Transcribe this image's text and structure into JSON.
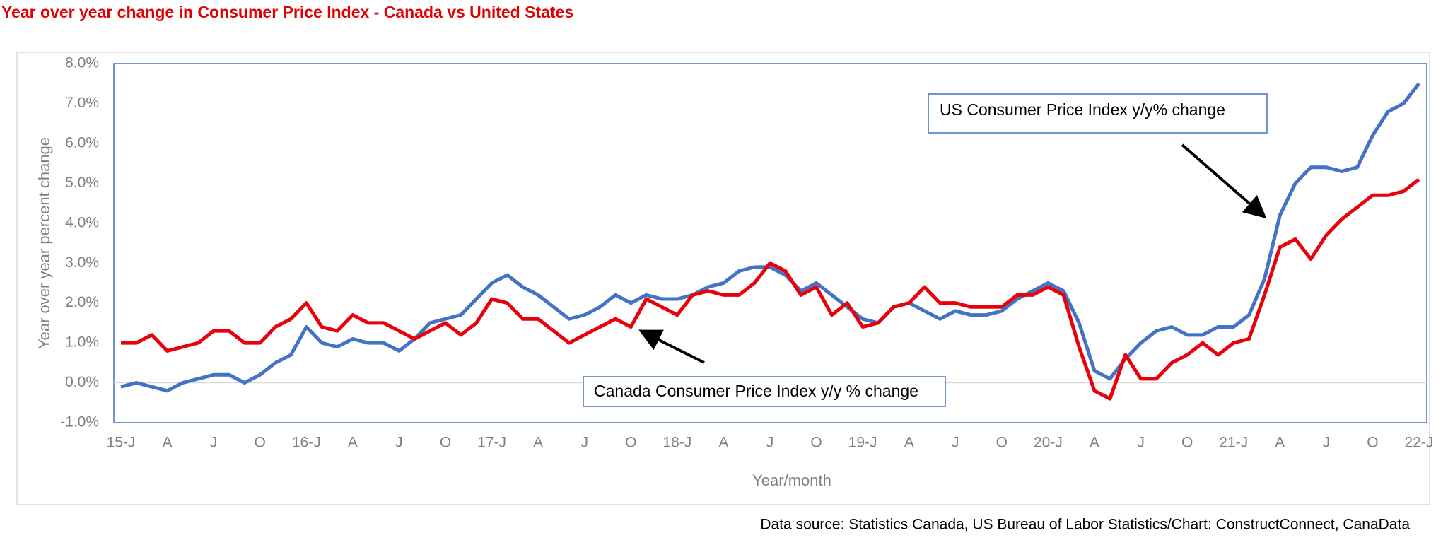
{
  "chart_data": {
    "type": "line",
    "title": "Year over year change in Consumer Price Index - Canada vs United States",
    "x_label": "Year/month",
    "y_label": "Year over year percent change",
    "source": "Data source: Statistics Canada, US Bureau of Labor Statistics/Chart: ConstructConnect, CanaData",
    "categories": [
      "15-J",
      null,
      null,
      "A",
      null,
      null,
      "J",
      null,
      null,
      "O",
      null,
      null,
      "16-J",
      null,
      null,
      "A",
      null,
      null,
      "J",
      null,
      null,
      "O",
      null,
      null,
      "17-J",
      null,
      null,
      "A",
      null,
      null,
      "J",
      null,
      null,
      "O",
      null,
      null,
      "18-J",
      null,
      null,
      "A",
      null,
      null,
      "J",
      null,
      null,
      "O",
      null,
      null,
      "19-J",
      null,
      null,
      "A",
      null,
      null,
      "J",
      null,
      null,
      "O",
      null,
      null,
      "20-J",
      null,
      null,
      "A",
      null,
      null,
      "J",
      null,
      null,
      "O",
      null,
      null,
      "21-J",
      null,
      null,
      "A",
      null,
      null,
      "J",
      null,
      null,
      "O",
      null,
      null,
      "22-J"
    ],
    "series": [
      {
        "name": "US Consumer Price Index y/y% change",
        "color": "#4472c4",
        "values": [
          -0.1,
          0.0,
          -0.1,
          -0.2,
          0.0,
          0.1,
          0.2,
          0.2,
          0.0,
          0.2,
          0.5,
          0.7,
          1.4,
          1.0,
          0.9,
          1.1,
          1.0,
          1.0,
          0.8,
          1.1,
          1.5,
          1.6,
          1.7,
          2.1,
          2.5,
          2.7,
          2.4,
          2.2,
          1.9,
          1.6,
          1.7,
          1.9,
          2.2,
          2.0,
          2.2,
          2.1,
          2.1,
          2.2,
          2.4,
          2.5,
          2.8,
          2.9,
          2.9,
          2.7,
          2.3,
          2.5,
          2.2,
          1.9,
          1.6,
          1.5,
          1.9,
          2.0,
          1.8,
          1.6,
          1.8,
          1.7,
          1.7,
          1.8,
          2.1,
          2.3,
          2.5,
          2.3,
          1.5,
          0.3,
          0.1,
          0.6,
          1.0,
          1.3,
          1.4,
          1.2,
          1.2,
          1.4,
          1.4,
          1.7,
          2.6,
          4.2,
          5.0,
          5.4,
          5.4,
          5.3,
          5.4,
          6.2,
          6.8,
          7.0,
          7.5
        ]
      },
      {
        "name": "Canada Consumer Price Index y/y % change",
        "color": "#e8000b",
        "values": [
          1.0,
          1.0,
          1.2,
          0.8,
          0.9,
          1.0,
          1.3,
          1.3,
          1.0,
          1.0,
          1.4,
          1.6,
          2.0,
          1.4,
          1.3,
          1.7,
          1.5,
          1.5,
          1.3,
          1.1,
          1.3,
          1.5,
          1.2,
          1.5,
          2.1,
          2.0,
          1.6,
          1.6,
          1.3,
          1.0,
          1.2,
          1.4,
          1.6,
          1.4,
          2.1,
          1.9,
          1.7,
          2.2,
          2.3,
          2.2,
          2.2,
          2.5,
          3.0,
          2.8,
          2.2,
          2.4,
          1.7,
          2.0,
          1.4,
          1.5,
          1.9,
          2.0,
          2.4,
          2.0,
          2.0,
          1.9,
          1.9,
          1.9,
          2.2,
          2.2,
          2.4,
          2.2,
          0.9,
          -0.2,
          -0.4,
          0.7,
          0.1,
          0.1,
          0.5,
          0.7,
          1.0,
          0.7,
          1.0,
          1.1,
          2.2,
          3.4,
          3.6,
          3.1,
          3.7,
          4.1,
          4.4,
          4.7,
          4.7,
          4.8,
          5.1
        ]
      }
    ],
    "ylim": [
      -1,
      8
    ],
    "yticks": [
      {
        "value": -1,
        "label": "-1.0%"
      },
      {
        "value": 0,
        "label": "0.0%"
      },
      {
        "value": 1,
        "label": "1.0%"
      },
      {
        "value": 2,
        "label": "2.0%"
      },
      {
        "value": 3,
        "label": "3.0%"
      },
      {
        "value": 4,
        "label": "4.0%"
      },
      {
        "value": 5,
        "label": "5.0%"
      },
      {
        "value": 6,
        "label": "6.0%"
      },
      {
        "value": 7,
        "label": "7.0%"
      },
      {
        "value": 8,
        "label": "8.0%"
      }
    ],
    "zero_line": true
  }
}
